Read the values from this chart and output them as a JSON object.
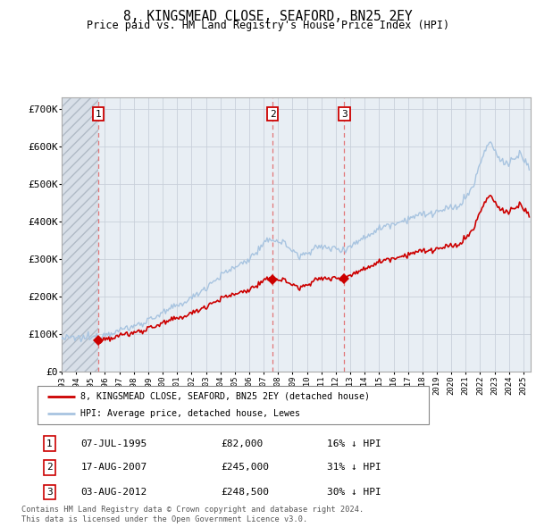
{
  "title": "8, KINGSMEAD CLOSE, SEAFORD, BN25 2EY",
  "subtitle": "Price paid vs. HM Land Registry's House Price Index (HPI)",
  "property_label": "8, KINGSMEAD CLOSE, SEAFORD, BN25 2EY (detached house)",
  "hpi_label": "HPI: Average price, detached house, Lewes",
  "transactions": [
    {
      "num": 1,
      "date": "07-JUL-1995",
      "year": 1995.53,
      "price": 82000,
      "pct": "16% ↓ HPI"
    },
    {
      "num": 2,
      "date": "17-AUG-2007",
      "year": 2007.63,
      "price": 245000,
      "pct": "31% ↓ HPI"
    },
    {
      "num": 3,
      "date": "03-AUG-2012",
      "year": 2012.59,
      "price": 248500,
      "pct": "30% ↓ HPI"
    }
  ],
  "footer": "Contains HM Land Registry data © Crown copyright and database right 2024.\nThis data is licensed under the Open Government Licence v3.0.",
  "ylim": [
    0,
    730000
  ],
  "yticks": [
    0,
    100000,
    200000,
    300000,
    400000,
    500000,
    600000,
    700000
  ],
  "ytick_labels": [
    "£0",
    "£100K",
    "£200K",
    "£300K",
    "£400K",
    "£500K",
    "£600K",
    "£700K"
  ],
  "xlim_start": 1993.0,
  "xlim_end": 2025.5,
  "hpi_color": "#a8c4e0",
  "property_color": "#cc0000",
  "grid_color": "#c8d0da",
  "marker_color": "#cc0000",
  "dashed_line_color": "#e06060",
  "plot_bg_color": "#e8eef4",
  "hatch_bg_color": "#d8dfe8",
  "fig_bg_color": "#ffffff"
}
